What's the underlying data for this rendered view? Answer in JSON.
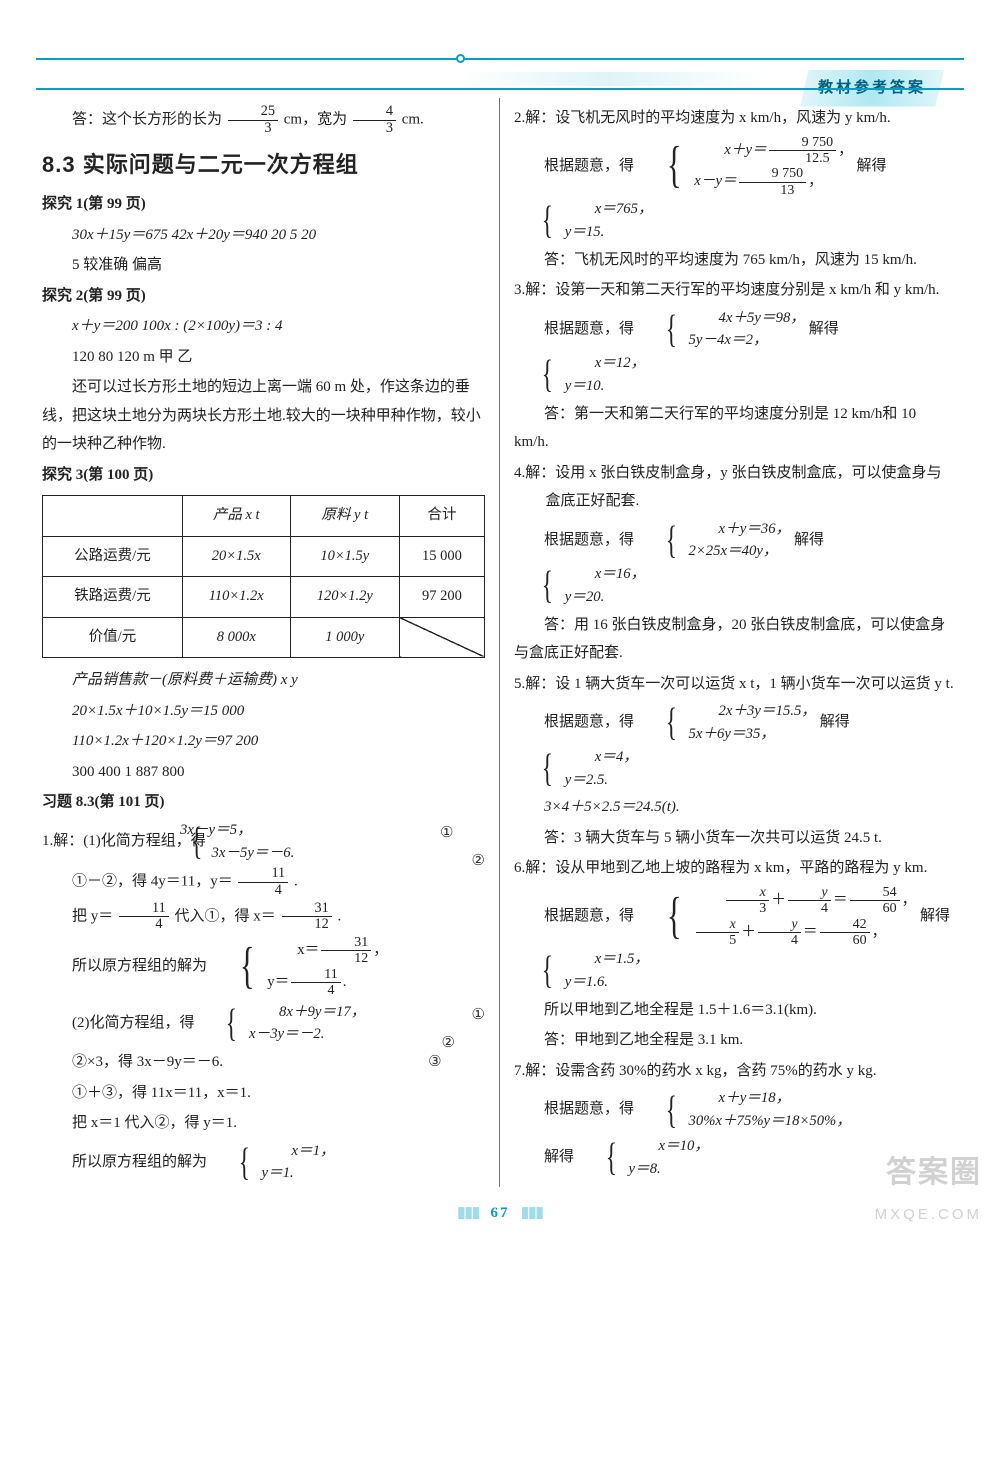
{
  "header": {
    "tab": "教材参考答案"
  },
  "left": {
    "pre": {
      "a": "答：这个长方形的长为 ",
      "f1n": "25",
      "f1d": "3",
      "b": " cm，宽为 ",
      "f2n": "4",
      "f2d": "3",
      "c": " cm."
    },
    "section_title": "8.3  实际问题与二元一次方程组",
    "t1": {
      "h": "探究 1(第 99 页)",
      "l1": "30x＋15y＝675   42x＋20y＝940   20   5   20",
      "l2": "5   较准确   偏高"
    },
    "t2": {
      "h": "探究 2(第 99 页)",
      "l1": "x＋y＝200   100x : (2×100y)＝3 : 4",
      "l2": "120   80   120 m   甲   乙",
      "p1": "还可以过长方形土地的短边上离一端 60 m 处，作这条边的垂线，把这块土地分为两块长方形土地.较大的一块种甲种作物，较小的一块种乙种作物."
    },
    "t3": {
      "h": "探究 3(第 100 页)",
      "table": {
        "headers": [
          "",
          "产品 x t",
          "原料 y t",
          "合计"
        ],
        "rows": [
          [
            "公路运费/元",
            "20×1.5x",
            "10×1.5y",
            "15 000"
          ],
          [
            "铁路运费/元",
            "110×1.2x",
            "120×1.2y",
            "97 200"
          ],
          [
            "价值/元",
            "8 000x",
            "1 000y",
            ""
          ]
        ]
      },
      "after1": "产品销售款－(原料费＋运输费)   x   y",
      "after2": "20×1.5x＋10×1.5y＝15 000",
      "after3": "110×1.2x＋120×1.2y＝97 200",
      "after4": "300   400   1 887 800"
    },
    "ex83": {
      "h": "习题 8.3(第 101 页)"
    },
    "p1": {
      "lead": "1.解：(1)化简方程组，得",
      "sysA": "3x－y＝5，",
      "sysAn": "①",
      "sysB": "3x－5y＝－6.",
      "sysBn": "②",
      "l1a": "①－②，得 4y＝11，y＝",
      "l1fn": "11",
      "l1fd": "4",
      "l1b": ".",
      "l2a": "把 y＝",
      "l2f1n": "11",
      "l2f1d": "4",
      "l2b": "代入①，得 x＝",
      "l2f2n": "31",
      "l2f2d": "12",
      "l2c": ".",
      "sol_lead": "所以原方程组的解为",
      "solA_a": "x＝",
      "solA_fn": "31",
      "solA_fd": "12",
      "solA_b": "，",
      "solB_a": "y＝",
      "solB_fn": "11",
      "solB_fd": "4",
      "solB_b": ".",
      "p2lead": "(2)化简方程组，得",
      "p2A": "8x＋9y＝17，",
      "p2An": "①",
      "p2B": "x－3y＝－2.",
      "p2Bn": "②",
      "p2l1": "②×3，得 3x－9y＝－6.",
      "p2l1n": "③",
      "p2l2": "①＋③，得 11x＝11，x＝1.",
      "p2l3": "把 x＝1 代入②，得 y＝1.",
      "p2sol_lead": "所以原方程组的解为",
      "p2solA": "x＝1，",
      "p2solB": "y＝1."
    }
  },
  "right": {
    "q2": {
      "lead": "2.解：设飞机无风时的平均速度为 x km/h，风速为 y km/h.",
      "sys_lead": "根据题意，得",
      "sA_a": "x＋y＝",
      "sA_fn": "9 750",
      "sA_fd": "12.5",
      "sA_b": "，",
      "sB_a": "x－y＝",
      "sB_fn": "9 750",
      "sB_fd": "13",
      "sB_b": "，",
      "sol_lead": "解得",
      "solA": "x＝765，",
      "solB": "y＝15.",
      "ans": "答：飞机无风时的平均速度为 765 km/h，风速为 15 km/h."
    },
    "q3": {
      "lead": "3.解：设第一天和第二天行军的平均速度分别是 x km/h 和 y km/h.",
      "sys_lead": "根据题意，得",
      "sA": "4x＋5y＝98，",
      "sB": "5y－4x＝2，",
      "sol_lead": "解得",
      "solA": "x＝12，",
      "solB": "y＝10.",
      "ans": "答：第一天和第二天行军的平均速度分别是 12 km/h和 10 km/h."
    },
    "q4": {
      "lead": "4.解：设用 x 张白铁皮制盒身，y 张白铁皮制盒底，可以使盒身与盒底正好配套.",
      "sys_lead": "根据题意，得",
      "sA": "x＋y＝36，",
      "sB": "2×25x＝40y，",
      "sol_lead": "解得",
      "solA": "x＝16，",
      "solB": "y＝20.",
      "ans": "答：用 16 张白铁皮制盒身，20 张白铁皮制盒底，可以使盒身与盒底正好配套."
    },
    "q5": {
      "lead": "5.解：设 1 辆大货车一次可以运货 x t，1 辆小货车一次可以运货 y t.",
      "sys_lead": "根据题意，得",
      "sA": "2x＋3y＝15.5，",
      "sB": "5x＋6y＝35，",
      "sol_lead": "解得",
      "solA": "x＝4，",
      "solB": "y＝2.5.",
      "calc": "3×4＋5×2.5＝24.5(t).",
      "ans": "答：3 辆大货车与 5 辆小货车一次共可以运货 24.5 t."
    },
    "q6": {
      "lead": "6.解：设从甲地到乙地上坡的路程为 x km，平路的路程为 y km.",
      "sys_lead": "根据题意，得",
      "sA_f1n": "x",
      "sA_f1d": "3",
      "sA_m": "＋",
      "sA_f2n": "y",
      "sA_f2d": "4",
      "sA_eq": "＝",
      "sA_f3n": "54",
      "sA_f3d": "60",
      "sA_b": "，",
      "sB_f1n": "x",
      "sB_f1d": "5",
      "sB_m": "＋",
      "sB_f2n": "y",
      "sB_f2d": "4",
      "sB_eq": "＝",
      "sB_f3n": "42",
      "sB_f3d": "60",
      "sB_b": "，",
      "sol_lead": "解得",
      "solA": "x＝1.5，",
      "solB": "y＝1.6.",
      "calc": "所以甲地到乙地全程是 1.5＋1.6＝3.1(km).",
      "ans": "答：甲地到乙地全程是 3.1 km."
    },
    "q7": {
      "lead": "7.解：设需含药 30%的药水 x kg，含药 75%的药水 y kg.",
      "sys_lead": "根据题意，得",
      "sA": "x＋y＝18，",
      "sB": "30%x＋75%y＝18×50%，",
      "sol_lead": "解得",
      "solA": "x＝10，",
      "solB": "y＝8."
    }
  },
  "page_number": "67",
  "watermark": {
    "line1": "答案圈",
    "line2": "MXQE.COM"
  }
}
